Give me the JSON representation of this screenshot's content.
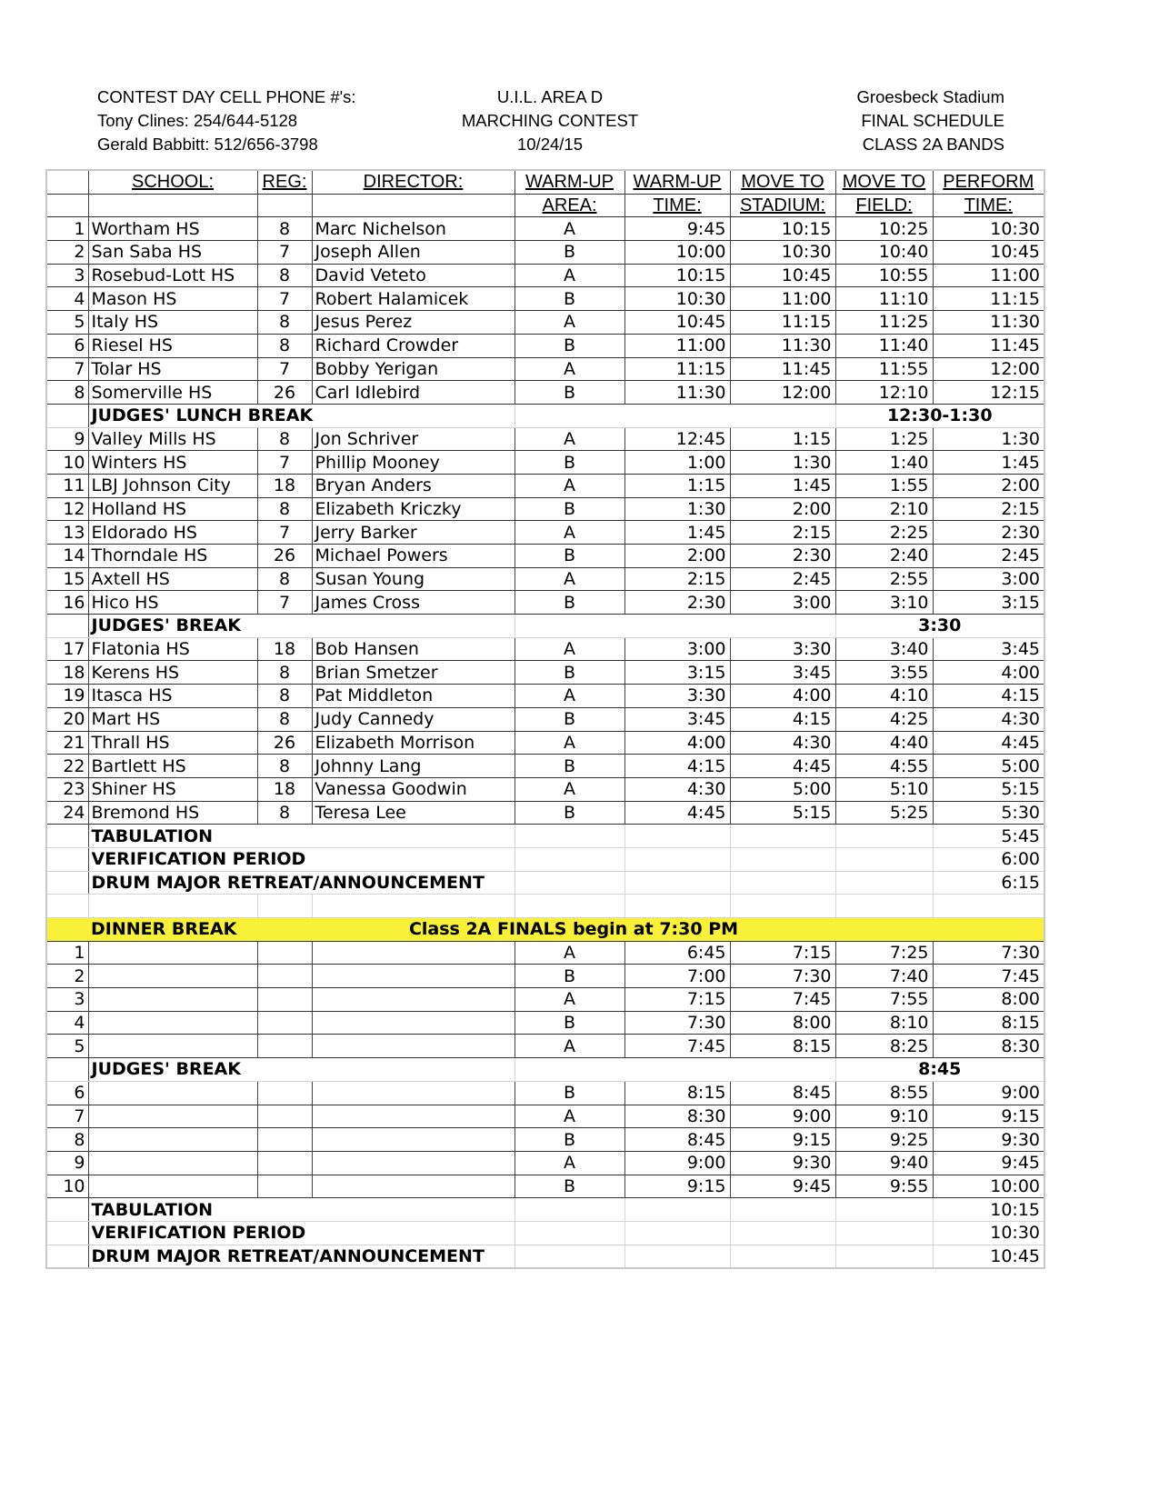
{
  "header": {
    "left": [
      "CONTEST DAY CELL PHONE #'s:",
      "Tony Clines: 254/644-5128",
      "Gerald Babbitt: 512/656-3798"
    ],
    "center": [
      "U.I.L. AREA D",
      "MARCHING CONTEST",
      "10/24/15"
    ],
    "right": [
      "Groesbeck Stadium",
      "FINAL SCHEDULE",
      "CLASS 2A BANDS"
    ]
  },
  "columns": {
    "row1": [
      "",
      "SCHOOL:",
      "REG:",
      "DIRECTOR:",
      "WARM-UP",
      "WARM-UP",
      "MOVE TO",
      "MOVE TO",
      "PERFORM"
    ],
    "row2": [
      "",
      "",
      "",
      "",
      "AREA:",
      "TIME:",
      "STADIUM:",
      "FIELD:",
      "TIME:"
    ]
  },
  "rows": [
    {
      "type": "band",
      "num": "1",
      "school": "Wortham HS",
      "reg": "8",
      "director": "Marc Nichelson",
      "area": "A",
      "warmup": "9:45",
      "stadium": "10:15",
      "field": "10:25",
      "perform": "10:30"
    },
    {
      "type": "band",
      "num": "2",
      "school": "San Saba HS",
      "reg": "7",
      "director": "Joseph Allen",
      "area": "B",
      "warmup": "10:00",
      "stadium": "10:30",
      "field": "10:40",
      "perform": "10:45"
    },
    {
      "type": "band",
      "num": "3",
      "school": "Rosebud-Lott HS",
      "reg": "8",
      "director": "David Veteto",
      "area": "A",
      "warmup": "10:15",
      "stadium": "10:45",
      "field": "10:55",
      "perform": "11:00"
    },
    {
      "type": "band",
      "num": "4",
      "school": "Mason HS",
      "reg": "7",
      "director": "Robert Halamicek",
      "area": "B",
      "warmup": "10:30",
      "stadium": "11:00",
      "field": "11:10",
      "perform": "11:15"
    },
    {
      "type": "band",
      "num": "5",
      "school": "Italy HS",
      "reg": "8",
      "director": "Jesus Perez",
      "area": "A",
      "warmup": "10:45",
      "stadium": "11:15",
      "field": "11:25",
      "perform": "11:30"
    },
    {
      "type": "band",
      "num": "6",
      "school": "Riesel HS",
      "reg": "8",
      "director": "Richard Crowder",
      "area": "B",
      "warmup": "11:00",
      "stadium": "11:30",
      "field": "11:40",
      "perform": "11:45"
    },
    {
      "type": "band",
      "num": "7",
      "school": "Tolar HS",
      "reg": "7",
      "director": "Bobby Yerigan",
      "area": "A",
      "warmup": "11:15",
      "stadium": "11:45",
      "field": "11:55",
      "perform": "12:00"
    },
    {
      "type": "band",
      "num": "8",
      "school": "Somerville HS",
      "reg": "26",
      "director": "Carl Idlebird",
      "area": "B",
      "warmup": "11:30",
      "stadium": "12:00",
      "field": "12:10",
      "perform": "12:15"
    },
    {
      "type": "break",
      "label": "JUDGES' LUNCH BREAK",
      "field": "12:30-1:30"
    },
    {
      "type": "band",
      "num": "9",
      "school": "Valley Mills HS",
      "reg": "8",
      "director": "Jon Schriver",
      "area": "A",
      "warmup": "12:45",
      "stadium": "1:15",
      "field": "1:25",
      "perform": "1:30"
    },
    {
      "type": "band",
      "num": "10",
      "school": "Winters HS",
      "reg": "7",
      "director": "Phillip Mooney",
      "area": "B",
      "warmup": "1:00",
      "stadium": "1:30",
      "field": "1:40",
      "perform": "1:45"
    },
    {
      "type": "band",
      "num": "11",
      "school": "LBJ Johnson City",
      "reg": "18",
      "director": "Bryan Anders",
      "area": "A",
      "warmup": "1:15",
      "stadium": "1:45",
      "field": "1:55",
      "perform": "2:00"
    },
    {
      "type": "band",
      "num": "12",
      "school": "Holland HS",
      "reg": "8",
      "director": "Elizabeth Kriczky",
      "area": "B",
      "warmup": "1:30",
      "stadium": "2:00",
      "field": "2:10",
      "perform": "2:15"
    },
    {
      "type": "band",
      "num": "13",
      "school": "Eldorado HS",
      "reg": "7",
      "director": "Jerry Barker",
      "area": "A",
      "warmup": "1:45",
      "stadium": "2:15",
      "field": "2:25",
      "perform": "2:30"
    },
    {
      "type": "band",
      "num": "14",
      "school": "Thorndale HS",
      "reg": "26",
      "director": "Michael Powers",
      "area": "B",
      "warmup": "2:00",
      "stadium": "2:30",
      "field": "2:40",
      "perform": "2:45"
    },
    {
      "type": "band",
      "num": "15",
      "school": "Axtell HS",
      "reg": "8",
      "director": "Susan Young",
      "area": "A",
      "warmup": "2:15",
      "stadium": "2:45",
      "field": "2:55",
      "perform": "3:00"
    },
    {
      "type": "band",
      "num": "16",
      "school": "Hico HS",
      "reg": "7",
      "director": "James Cross",
      "area": "B",
      "warmup": "2:30",
      "stadium": "3:00",
      "field": "3:10",
      "perform": "3:15"
    },
    {
      "type": "break",
      "label": "JUDGES' BREAK",
      "field": "3:30"
    },
    {
      "type": "band",
      "num": "17",
      "school": "Flatonia HS",
      "reg": "18",
      "director": "Bob Hansen",
      "area": "A",
      "warmup": "3:00",
      "stadium": "3:30",
      "field": "3:40",
      "perform": "3:45"
    },
    {
      "type": "band",
      "num": "18",
      "school": "Kerens HS",
      "reg": "8",
      "director": "Brian Smetzer",
      "area": "B",
      "warmup": "3:15",
      "stadium": "3:45",
      "field": "3:55",
      "perform": "4:00"
    },
    {
      "type": "band",
      "num": "19",
      "school": "Itasca HS",
      "reg": "8",
      "director": "Pat Middleton",
      "area": "A",
      "warmup": "3:30",
      "stadium": "4:00",
      "field": "4:10",
      "perform": "4:15"
    },
    {
      "type": "band",
      "num": "20",
      "school": "Mart HS",
      "reg": "8",
      "director": "Judy Cannedy",
      "area": "B",
      "warmup": "3:45",
      "stadium": "4:15",
      "field": "4:25",
      "perform": "4:30"
    },
    {
      "type": "band",
      "num": "21",
      "school": "Thrall HS",
      "reg": "26",
      "director": "Elizabeth Morrison",
      "area": "A",
      "warmup": "4:00",
      "stadium": "4:30",
      "field": "4:40",
      "perform": "4:45"
    },
    {
      "type": "band",
      "num": "22",
      "school": "Bartlett HS",
      "reg": "8",
      "director": "Johnny Lang",
      "area": "B",
      "warmup": "4:15",
      "stadium": "4:45",
      "field": "4:55",
      "perform": "5:00"
    },
    {
      "type": "band",
      "num": "23",
      "school": "Shiner HS",
      "reg": "18",
      "director": "Vanessa Goodwin",
      "area": "A",
      "warmup": "4:30",
      "stadium": "5:00",
      "field": "5:10",
      "perform": "5:15"
    },
    {
      "type": "band",
      "num": "24",
      "school": "Bremond HS",
      "reg": "8",
      "director": "Teresa Lee",
      "area": "B",
      "warmup": "4:45",
      "stadium": "5:15",
      "field": "5:25",
      "perform": "5:30"
    },
    {
      "type": "event",
      "label": "TABULATION",
      "perform": "5:45"
    },
    {
      "type": "event",
      "label": "VERIFICATION PERIOD",
      "perform": "6:00"
    },
    {
      "type": "event",
      "label": "DRUM MAJOR RETREAT/ANNOUNCEMENT",
      "perform": "6:15"
    },
    {
      "type": "empty"
    },
    {
      "type": "dinner",
      "label": "DINNER BREAK",
      "note": "Class 2A FINALS begin at 7:30 PM",
      "highlight": "#f9f038"
    },
    {
      "type": "band",
      "num": "1",
      "school": "",
      "reg": "",
      "director": "",
      "area": "A",
      "warmup": "6:45",
      "stadium": "7:15",
      "field": "7:25",
      "perform": "7:30"
    },
    {
      "type": "band",
      "num": "2",
      "school": "",
      "reg": "",
      "director": "",
      "area": "B",
      "warmup": "7:00",
      "stadium": "7:30",
      "field": "7:40",
      "perform": "7:45"
    },
    {
      "type": "band",
      "num": "3",
      "school": "",
      "reg": "",
      "director": "",
      "area": "A",
      "warmup": "7:15",
      "stadium": "7:45",
      "field": "7:55",
      "perform": "8:00"
    },
    {
      "type": "band",
      "num": "4",
      "school": "",
      "reg": "",
      "director": "",
      "area": "B",
      "warmup": "7:30",
      "stadium": "8:00",
      "field": "8:10",
      "perform": "8:15"
    },
    {
      "type": "band",
      "num": "5",
      "school": "",
      "reg": "",
      "director": "",
      "area": "A",
      "warmup": "7:45",
      "stadium": "8:15",
      "field": "8:25",
      "perform": "8:30"
    },
    {
      "type": "break",
      "label": "JUDGES' BREAK",
      "field": "8:45"
    },
    {
      "type": "band",
      "num": "6",
      "school": "",
      "reg": "",
      "director": "",
      "area": "B",
      "warmup": "8:15",
      "stadium": "8:45",
      "field": "8:55",
      "perform": "9:00"
    },
    {
      "type": "band",
      "num": "7",
      "school": "",
      "reg": "",
      "director": "",
      "area": "A",
      "warmup": "8:30",
      "stadium": "9:00",
      "field": "9:10",
      "perform": "9:15"
    },
    {
      "type": "band",
      "num": "8",
      "school": "",
      "reg": "",
      "director": "",
      "area": "B",
      "warmup": "8:45",
      "stadium": "9:15",
      "field": "9:25",
      "perform": "9:30"
    },
    {
      "type": "band",
      "num": "9",
      "school": "",
      "reg": "",
      "director": "",
      "area": "A",
      "warmup": "9:00",
      "stadium": "9:30",
      "field": "9:40",
      "perform": "9:45"
    },
    {
      "type": "band",
      "num": "10",
      "school": "",
      "reg": "",
      "director": "",
      "area": "B",
      "warmup": "9:15",
      "stadium": "9:45",
      "field": "9:55",
      "perform": "10:00"
    },
    {
      "type": "event",
      "label": "TABULATION",
      "perform": "10:15"
    },
    {
      "type": "event",
      "label": "VERIFICATION PERIOD",
      "perform": "10:30"
    },
    {
      "type": "event",
      "label": "DRUM MAJOR RETREAT/ANNOUNCEMENT",
      "perform": "10:45"
    }
  ]
}
